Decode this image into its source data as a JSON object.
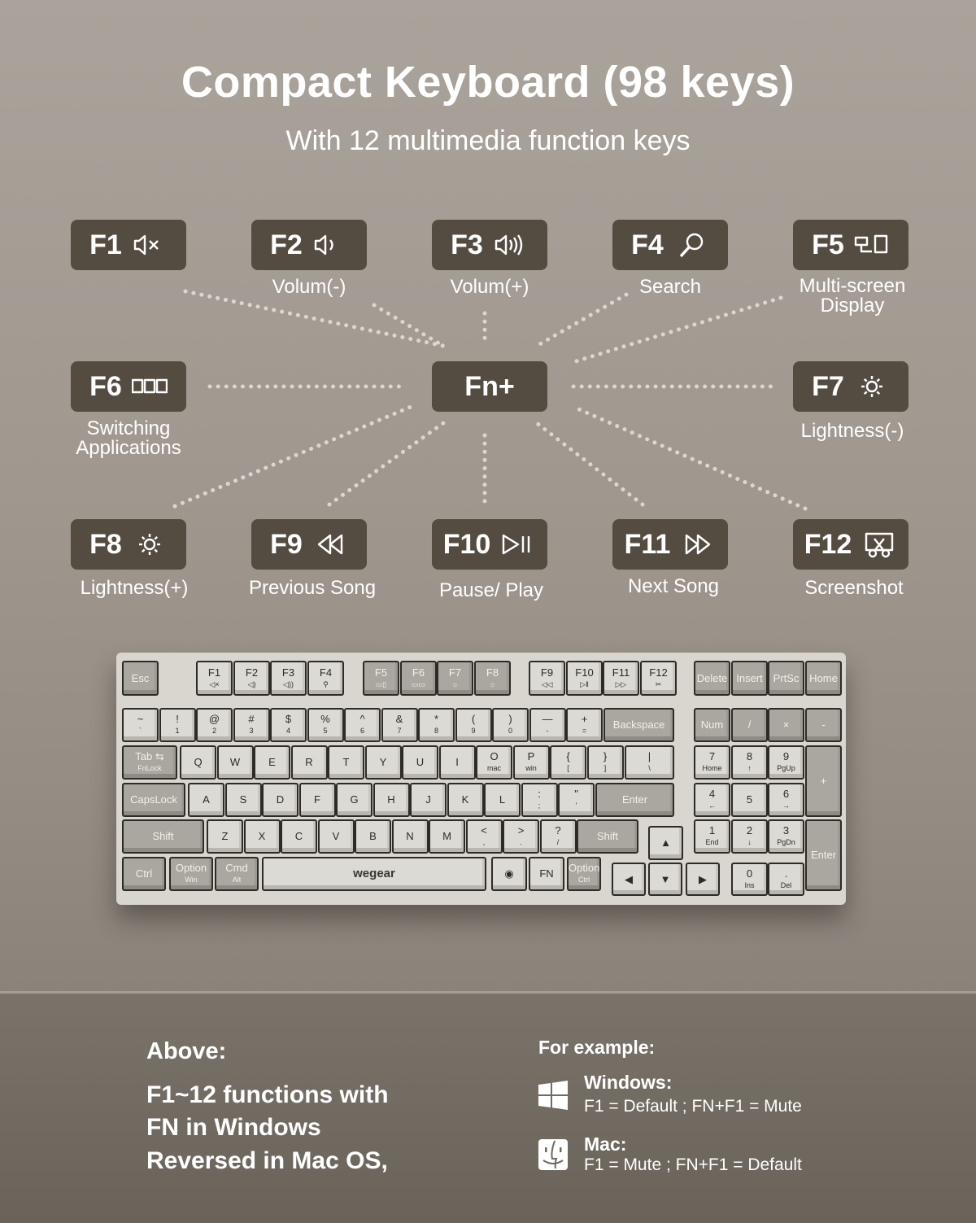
{
  "header": {
    "title": "Compact Keyboard (98 keys)",
    "subtitle": "With 12 multimedia function keys"
  },
  "colors": {
    "badge": "#544c41",
    "panel": "#6f685f",
    "text": "#ffffff"
  },
  "center_key": "Fn+",
  "function_keys": [
    {
      "key": "F1",
      "icon": "mute-icon",
      "label": ""
    },
    {
      "key": "F2",
      "icon": "volume-down-icon",
      "label": "Volum(-)"
    },
    {
      "key": "F3",
      "icon": "volume-up-icon",
      "label": "Volum(+)"
    },
    {
      "key": "F4",
      "icon": "search-icon",
      "label": "Search"
    },
    {
      "key": "F5",
      "icon": "multi-screen-icon",
      "label": "Multi-screen Display"
    },
    {
      "key": "F6",
      "icon": "switch-apps-icon",
      "label": "Switching Applications"
    },
    {
      "key": "F7",
      "icon": "brightness-down-icon",
      "label": "Lightness(-)"
    },
    {
      "key": "F8",
      "icon": "brightness-up-icon",
      "label": "Lightness(+)"
    },
    {
      "key": "F9",
      "icon": "previous-icon",
      "label": "Previous Song"
    },
    {
      "key": "F10",
      "icon": "play-pause-icon",
      "label": "Pause/ Play"
    },
    {
      "key": "F11",
      "icon": "next-icon",
      "label": "Next Song"
    },
    {
      "key": "F12",
      "icon": "screenshot-icon",
      "label": "Screenshot"
    }
  ],
  "keyboard": {
    "brand": "wegear",
    "keys": [
      {
        "top": "Esc"
      },
      {
        "top": "F1",
        "bottom": "◁×"
      },
      {
        "top": "F2",
        "bottom": "◁)"
      },
      {
        "top": "F3",
        "bottom": "◁))"
      },
      {
        "top": "F4",
        "bottom": "⚲"
      },
      {
        "top": "F5",
        "bottom": "▭▯"
      },
      {
        "top": "F6",
        "bottom": "▭▭"
      },
      {
        "top": "F7",
        "bottom": "☼"
      },
      {
        "top": "F8",
        "bottom": "☼"
      },
      {
        "top": "F9",
        "bottom": "◁◁"
      },
      {
        "top": "F10",
        "bottom": "▷‖"
      },
      {
        "top": "F11",
        "bottom": "▷▷"
      },
      {
        "top": "F12",
        "bottom": "✂"
      },
      {
        "top": "Delete"
      },
      {
        "top": "Insert"
      },
      {
        "top": "PrtSc"
      },
      {
        "top": "Home"
      },
      {
        "top": "~",
        "bottom": "`"
      },
      {
        "top": "!",
        "bottom": "1"
      },
      {
        "top": "@",
        "bottom": "2"
      },
      {
        "top": "#",
        "bottom": "3"
      },
      {
        "top": "$",
        "bottom": "4"
      },
      {
        "top": "%",
        "bottom": "5"
      },
      {
        "top": "^",
        "bottom": "6"
      },
      {
        "top": "&",
        "bottom": "7"
      },
      {
        "top": "*",
        "bottom": "8"
      },
      {
        "top": "(",
        "bottom": "9"
      },
      {
        "top": ")",
        "bottom": "0"
      },
      {
        "top": "—",
        "bottom": "-"
      },
      {
        "top": "+",
        "bottom": "="
      },
      {
        "top": "Backspace"
      },
      {
        "top": "Num"
      },
      {
        "top": "/"
      },
      {
        "top": "×"
      },
      {
        "top": "-"
      },
      {
        "top": "Tab ⇆",
        "bottom": "FnLock"
      },
      {
        "top": "Q"
      },
      {
        "top": "W"
      },
      {
        "top": "E"
      },
      {
        "top": "R"
      },
      {
        "top": "T"
      },
      {
        "top": "Y"
      },
      {
        "top": "U"
      },
      {
        "top": "I"
      },
      {
        "top": "O",
        "bottom": "mac"
      },
      {
        "top": "P",
        "bottom": "win"
      },
      {
        "top": "{",
        "bottom": "["
      },
      {
        "top": "}",
        "bottom": "]"
      },
      {
        "top": "|",
        "bottom": "\\"
      },
      {
        "top": "7",
        "bottom": "Home"
      },
      {
        "top": "8",
        "bottom": "↑"
      },
      {
        "top": "9",
        "bottom": "PgUp"
      },
      {
        "top": "+"
      },
      {
        "top": "CapsLock"
      },
      {
        "top": "A"
      },
      {
        "top": "S"
      },
      {
        "top": "D"
      },
      {
        "top": "F"
      },
      {
        "top": "G"
      },
      {
        "top": "H"
      },
      {
        "top": "J"
      },
      {
        "top": "K"
      },
      {
        "top": "L"
      },
      {
        "top": ":",
        "bottom": ";"
      },
      {
        "top": "\"",
        "bottom": "'"
      },
      {
        "top": "Enter"
      },
      {
        "top": "4",
        "bottom": "←"
      },
      {
        "top": "5"
      },
      {
        "top": "6",
        "bottom": "→"
      },
      {
        "top": "Shift"
      },
      {
        "top": "Z"
      },
      {
        "top": "X"
      },
      {
        "top": "C"
      },
      {
        "top": "V"
      },
      {
        "top": "B"
      },
      {
        "top": "N"
      },
      {
        "top": "M"
      },
      {
        "top": "<",
        "bottom": ","
      },
      {
        "top": ">",
        "bottom": "."
      },
      {
        "top": "?",
        "bottom": "/"
      },
      {
        "top": "Shift"
      },
      {
        "top": "▲"
      },
      {
        "top": "1",
        "bottom": "End"
      },
      {
        "top": "2",
        "bottom": "↓"
      },
      {
        "top": "3",
        "bottom": "PgDn"
      },
      {
        "top": "Enter"
      },
      {
        "top": "Ctrl"
      },
      {
        "top": "Option",
        "bottom": "Win"
      },
      {
        "top": "Cmd",
        "bottom": "Alt"
      },
      {
        "top": ""
      },
      {
        "top": "◉"
      },
      {
        "top": "FN"
      },
      {
        "top": "Option",
        "bottom": "Ctrl"
      },
      {
        "top": "◀"
      },
      {
        "top": "▼"
      },
      {
        "top": "▶"
      },
      {
        "top": "0",
        "bottom": "Ins"
      },
      {
        "top": ".",
        "bottom": "Del"
      }
    ]
  },
  "bottom": {
    "above_heading": "Above:",
    "above_lines": [
      "F1~12 functions with",
      "FN in Windows",
      "Reversed in Mac OS,"
    ],
    "example_heading": "For example:",
    "windows": {
      "icon": "windows-icon",
      "title": "Windows:",
      "text": "F1 = Default ;  FN+F1 = Mute"
    },
    "mac": {
      "icon": "mac-finder-icon",
      "title": "Mac:",
      "text": "F1 = Mute ; FN+F1 = Default"
    }
  }
}
